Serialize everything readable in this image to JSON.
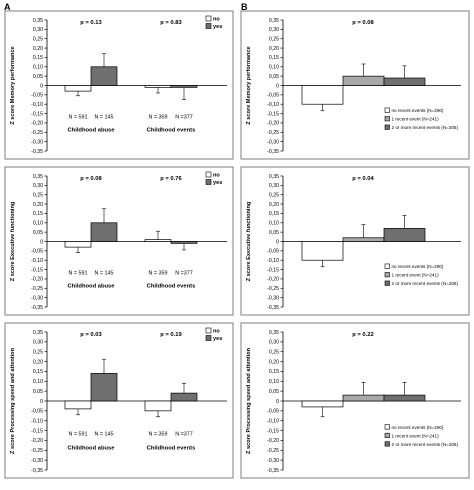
{
  "panel_labels": [
    "A",
    "B"
  ],
  "chart_data": [
    {
      "panel": "A",
      "type": "bar",
      "ylabel": "Z score Memory performance",
      "ylim": [
        -0.35,
        0.35
      ],
      "yticks": [
        "0,35",
        "0,30",
        "0,25",
        "0,20",
        "0,15",
        "0,10",
        "0,05",
        "0",
        "-0,05",
        "-0,10",
        "-0,15",
        "-0,20",
        "-0,25",
        "-0,30",
        "-0,35"
      ],
      "categories": [
        "Childhood abuse",
        "Childhood events"
      ],
      "p_values": [
        "p = 0.13",
        "p = 0.83"
      ],
      "n_labels": [
        [
          "N = 591",
          "N = 145"
        ],
        [
          "N = 359",
          "N =377"
        ]
      ],
      "series": [
        {
          "name": "no",
          "color": "#ffffff",
          "values": [
            -0.03,
            -0.01
          ],
          "errors": [
            0.025,
            0.03
          ]
        },
        {
          "name": "yes",
          "color": "#6f6f6f",
          "values": [
            0.1,
            -0.01
          ],
          "errors": [
            0.07,
            0.065
          ]
        }
      ],
      "legend": "top-right"
    },
    {
      "panel": "A",
      "type": "bar",
      "ylabel": "Z score Executive functioning",
      "ylim": [
        -0.35,
        0.35
      ],
      "yticks": [
        "0,35",
        "0,30",
        "0,25",
        "0,20",
        "0,15",
        "0,10",
        "0,05",
        "0",
        "-0,05",
        "-0,10",
        "-0,15",
        "-0,20",
        "-0,25",
        "-0,30",
        "-0,35"
      ],
      "categories": [
        "Childhood abuse",
        "Childhood events"
      ],
      "p_values": [
        "p = 0.08",
        "p = 0.76"
      ],
      "n_labels": [
        [
          "N = 591",
          "N = 145"
        ],
        [
          "N = 359",
          "N =377"
        ]
      ],
      "series": [
        {
          "name": "no",
          "color": "#ffffff",
          "values": [
            -0.03,
            0.01
          ],
          "errors": [
            0.03,
            0.045
          ]
        },
        {
          "name": "yes",
          "color": "#6f6f6f",
          "values": [
            0.1,
            -0.01
          ],
          "errors": [
            0.075,
            0.035
          ]
        }
      ],
      "legend": "top-right"
    },
    {
      "panel": "A",
      "type": "bar",
      "ylabel": "Z score Processing speed and attention",
      "ylim": [
        -0.35,
        0.35
      ],
      "yticks": [
        "0,35",
        "0,30",
        "0,25",
        "0,20",
        "0,15",
        "0,10",
        "0,05",
        "0",
        "-0,05",
        "-0,10",
        "-0,15",
        "-0,20",
        "-0,25",
        "-0,30",
        "-0,35"
      ],
      "categories": [
        "Childhood abuse",
        "Childhood events"
      ],
      "p_values": [
        "p = 0.03",
        "p = 0.19"
      ],
      "n_labels": [
        [
          "N = 591",
          "N = 145"
        ],
        [
          "N = 359",
          "N =377"
        ]
      ],
      "series": [
        {
          "name": "no",
          "color": "#ffffff",
          "values": [
            -0.04,
            -0.05
          ],
          "errors": [
            0.03,
            0.03
          ]
        },
        {
          "name": "yes",
          "color": "#6f6f6f",
          "values": [
            0.14,
            0.04
          ],
          "errors": [
            0.07,
            0.05
          ]
        }
      ],
      "legend": "top-right"
    },
    {
      "panel": "B",
      "type": "bar",
      "ylabel": "Z score Memory performance",
      "ylim": [
        -0.35,
        0.35
      ],
      "yticks": [
        "0,35",
        "0,30",
        "0,25",
        "0,20",
        "0,15",
        "0,10",
        "0,05",
        "0",
        "-0,05",
        "-0,10",
        "-0,15",
        "-0,20",
        "-0,25",
        "-0,30",
        "-0,35"
      ],
      "categories": [
        ""
      ],
      "p_values": [
        "p = 0.08"
      ],
      "series": [
        {
          "name": "no recent events (N=290)",
          "color": "#ffffff",
          "values": [
            -0.1
          ],
          "errors": [
            0.035
          ]
        },
        {
          "name": "1 recent event (N=241)",
          "color": "#a8a8a8",
          "values": [
            0.05
          ],
          "errors": [
            0.065
          ]
        },
        {
          "name": "2 or more recent events (N=205)",
          "color": "#6f6f6f",
          "values": [
            0.04
          ],
          "errors": [
            0.065
          ]
        }
      ],
      "legend": "bottom-right"
    },
    {
      "panel": "B",
      "type": "bar",
      "ylabel": "Z score Executive functioning",
      "ylim": [
        -0.35,
        0.35
      ],
      "yticks": [
        "0,35",
        "0,30",
        "0,25",
        "0,20",
        "0,15",
        "0,10",
        "0,05",
        "0",
        "-0,05",
        "-0,10",
        "-0,15",
        "-0,20",
        "-0,25",
        "-0,30",
        "-0,35"
      ],
      "categories": [
        ""
      ],
      "p_values": [
        "p = 0.04"
      ],
      "series": [
        {
          "name": "no recent events (N=290)",
          "color": "#ffffff",
          "values": [
            -0.1
          ],
          "errors": [
            0.035
          ]
        },
        {
          "name": "1 recent event (N=241)",
          "color": "#a8a8a8",
          "values": [
            0.02
          ],
          "errors": [
            0.07
          ]
        },
        {
          "name": "2 or more recent events (N=205)",
          "color": "#6f6f6f",
          "values": [
            0.07
          ],
          "errors": [
            0.07
          ]
        }
      ],
      "legend": "bottom-right"
    },
    {
      "panel": "B",
      "type": "bar",
      "ylabel": "Z score Processing speed and attention",
      "ylim": [
        -0.35,
        0.35
      ],
      "yticks": [
        "0,35",
        "0,30",
        "0,25",
        "0,20",
        "0,15",
        "0,10",
        "0,05",
        "0",
        "-0,05",
        "-0,10",
        "-0,15",
        "-0,20",
        "-0,25",
        "-0,30",
        "-0,35"
      ],
      "categories": [
        ""
      ],
      "p_values": [
        "p = 0.22"
      ],
      "series": [
        {
          "name": "no recent events (N=290)",
          "color": "#ffffff",
          "values": [
            -0.03
          ],
          "errors": [
            0.05
          ]
        },
        {
          "name": "1 recent event (N=241)",
          "color": "#a8a8a8",
          "values": [
            0.03
          ],
          "errors": [
            0.065
          ]
        },
        {
          "name": "2 or more recent events (N=205)",
          "color": "#6f6f6f",
          "values": [
            0.03
          ],
          "errors": [
            0.065
          ]
        }
      ],
      "legend": "bottom-right"
    }
  ]
}
